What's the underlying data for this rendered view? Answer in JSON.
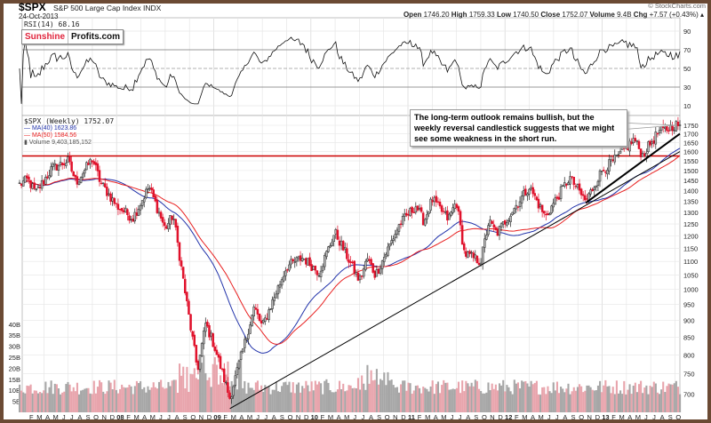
{
  "header": {
    "symbol": "$SPX",
    "name": "S&P 500 Large Cap Index  INDX",
    "date": "24-Oct-2013",
    "rsi_label": "RSI(14) 68.16",
    "source": "© StockCharts.com",
    "open_label": "Open",
    "open": "1746.20",
    "high_label": "High",
    "high": "1759.33",
    "low_label": "Low",
    "low": "1740.50",
    "close_label": "Close",
    "close": "1752.07",
    "volume_label": "Volume",
    "volume": "9.4B",
    "chg_label": "Chg",
    "chg": "+7.57 (+0.43%)"
  },
  "logo": {
    "part1": "Sunshine",
    "part2": "Profits.com"
  },
  "legend": {
    "price": "$SPX (Weekly) 1752.07",
    "ma40": "MA(40) 1623.86",
    "ma50": "MA(50) 1584.56",
    "volume": "Volume 9,403,185,152"
  },
  "annotation": "The long-term outlook remains bullish, but the weekly reversal candlestick suggests that we might see some weakness in the short run.",
  "colors": {
    "up": "#444444",
    "down": "#e0102a",
    "ma40": "#2233aa",
    "ma50": "#e82020",
    "support": "#cc0000",
    "vol_up": "#a6a6a6",
    "vol_down": "#e8a4ac",
    "trend": "#000000"
  },
  "chart_data": {
    "type": "candlestick",
    "title": "$SPX S&P 500 Large Cap Index INDX (Weekly)",
    "x_range": [
      "2007-01",
      "2013-10"
    ],
    "price_scale": "log",
    "price_ticks": [
      700,
      750,
      800,
      850,
      900,
      950,
      1000,
      1050,
      1100,
      1150,
      1200,
      1250,
      1300,
      1350,
      1400,
      1450,
      1500,
      1550,
      1600,
      1650,
      1700,
      1750
    ],
    "rsi_ticks": [
      10,
      30,
      50,
      70,
      90
    ],
    "volume_ticks": [
      "5B",
      "10B",
      "15B",
      "20B",
      "25B",
      "30B",
      "35B",
      "40B"
    ],
    "support_level": 1576,
    "trendlines": [
      {
        "from": [
          "2009-03",
          666
        ],
        "to": [
          "2013-10",
          1600
        ]
      },
      {
        "from": [
          "2012-11",
          1343
        ],
        "to": [
          "2013-10",
          1700
        ]
      }
    ],
    "price_anchors": [
      [
        "2007-01",
        1430
      ],
      [
        "2007-02",
        1455
      ],
      [
        "2007-03",
        1390
      ],
      [
        "2007-05",
        1510
      ],
      [
        "2007-07",
        1550
      ],
      [
        "2007-08",
        1440
      ],
      [
        "2007-10",
        1562
      ],
      [
        "2007-11",
        1440
      ],
      [
        "2008-01",
        1330
      ],
      [
        "2008-03",
        1275
      ],
      [
        "2008-05",
        1420
      ],
      [
        "2008-07",
        1230
      ],
      [
        "2008-08",
        1290
      ],
      [
        "2008-10",
        900
      ],
      [
        "2008-11",
        760
      ],
      [
        "2008-12",
        890
      ],
      [
        "2009-01",
        830
      ],
      [
        "2009-03",
        690
      ],
      [
        "2009-06",
        940
      ],
      [
        "2009-07",
        880
      ],
      [
        "2009-10",
        1080
      ],
      [
        "2009-12",
        1115
      ],
      [
        "2010-02",
        1060
      ],
      [
        "2010-04",
        1215
      ],
      [
        "2010-07",
        1030
      ],
      [
        "2010-08",
        1110
      ],
      [
        "2010-09",
        1050
      ],
      [
        "2010-12",
        1250
      ],
      [
        "2011-02",
        1330
      ],
      [
        "2011-03",
        1260
      ],
      [
        "2011-04",
        1360
      ],
      [
        "2011-06",
        1270
      ],
      [
        "2011-07",
        1350
      ],
      [
        "2011-08",
        1130
      ],
      [
        "2011-10",
        1100
      ],
      [
        "2011-11",
        1260
      ],
      [
        "2011-12",
        1210
      ],
      [
        "2012-04",
        1420
      ],
      [
        "2012-06",
        1280
      ],
      [
        "2012-09",
        1465
      ],
      [
        "2012-11",
        1350
      ],
      [
        "2013-01",
        1500
      ],
      [
        "2013-03",
        1570
      ],
      [
        "2013-05",
        1670
      ],
      [
        "2013-06",
        1580
      ],
      [
        "2013-08",
        1710
      ],
      [
        "2013-09",
        1725
      ],
      [
        "2013-10",
        1752
      ]
    ],
    "time_labels": [
      "F",
      "M",
      "A",
      "M",
      "J",
      "J",
      "A",
      "S",
      "O",
      "N",
      "D",
      "08",
      "F",
      "M",
      "A",
      "M",
      "J",
      "J",
      "A",
      "S",
      "O",
      "N",
      "D",
      "09",
      "F",
      "M",
      "A",
      "M",
      "J",
      "J",
      "A",
      "S",
      "O",
      "N",
      "D",
      "10",
      "F",
      "M",
      "A",
      "M",
      "J",
      "J",
      "A",
      "S",
      "O",
      "N",
      "D",
      "11",
      "F",
      "M",
      "A",
      "M",
      "J",
      "J",
      "A",
      "S",
      "O",
      "N",
      "D",
      "12",
      "F",
      "M",
      "A",
      "M",
      "J",
      "J",
      "A",
      "S",
      "O",
      "N",
      "D",
      "13",
      "F",
      "M",
      "A",
      "M",
      "J",
      "J",
      "A",
      "S",
      "O"
    ]
  }
}
